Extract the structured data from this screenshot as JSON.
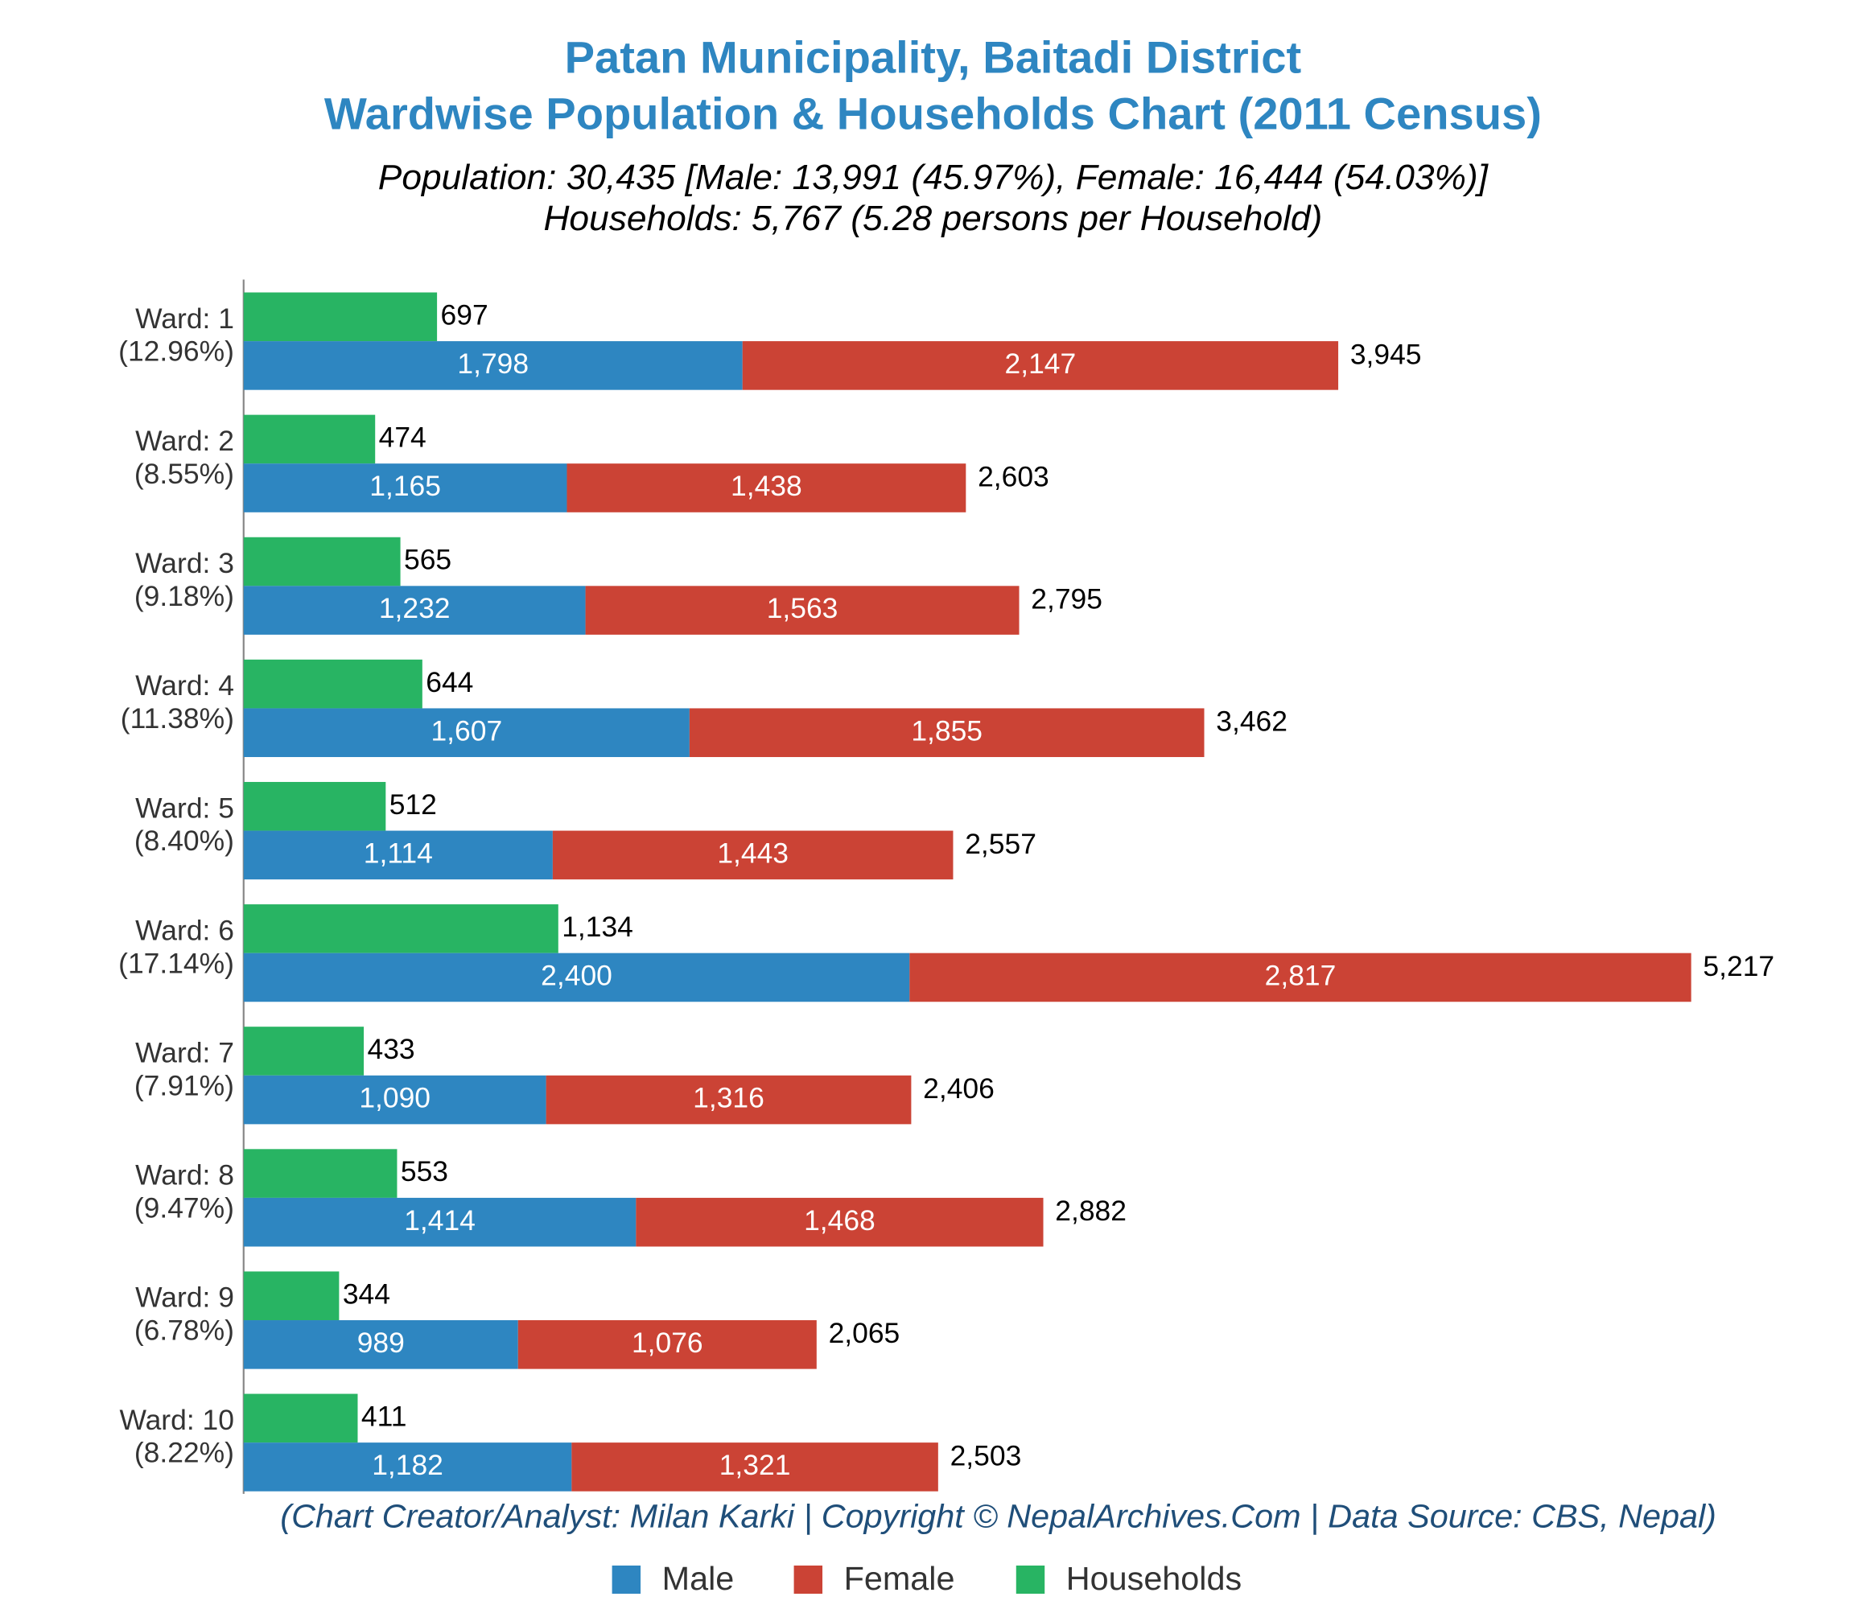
{
  "chart_data": {
    "type": "bar",
    "title": "Patan Municipality, Baitadi District",
    "subtitle": "Wardwise Population & Households Chart (2011 Census)",
    "summary_lines": [
      "Population: 30,435 [Male: 13,991 (45.97%), Female: 16,444 (54.03%)]",
      "Households: 5,767 (5.28 persons per Household)"
    ],
    "footnote": "(Chart Creator/Analyst: Milan Karki | Copyright © NepalArchives.Com | Data Source: CBS, Nepal)",
    "categories": [
      "Ward: 1",
      "Ward: 2",
      "Ward: 3",
      "Ward: 4",
      "Ward: 5",
      "Ward: 6",
      "Ward: 7",
      "Ward: 8",
      "Ward: 9",
      "Ward: 10"
    ],
    "category_shares": [
      "(12.96%)",
      "(8.55%)",
      "(9.18%)",
      "(11.38%)",
      "(8.40%)",
      "(17.14%)",
      "(7.91%)",
      "(9.47%)",
      "(6.78%)",
      "(8.22%)"
    ],
    "series": [
      {
        "name": "Male",
        "color": "#2e86c1",
        "stack": "population",
        "values": [
          1798,
          1165,
          1232,
          1607,
          1114,
          2400,
          1090,
          1414,
          989,
          1182
        ],
        "value_labels": [
          "1,798",
          "1,165",
          "1,232",
          "1,607",
          "1,114",
          "2,400",
          "1,090",
          "1,414",
          "989",
          "1,182"
        ]
      },
      {
        "name": "Female",
        "color": "#cb4335",
        "stack": "population",
        "values": [
          2147,
          1438,
          1563,
          1855,
          1443,
          2817,
          1316,
          1468,
          1076,
          1321
        ],
        "value_labels": [
          "2,147",
          "1,438",
          "1,563",
          "1,855",
          "1,443",
          "2,817",
          "1,316",
          "1,468",
          "1,076",
          "1,321"
        ]
      },
      {
        "name": "Households",
        "color": "#28b463",
        "stack": "households",
        "values": [
          697,
          474,
          565,
          644,
          512,
          1134,
          433,
          553,
          344,
          411
        ],
        "value_labels": [
          "697",
          "474",
          "565",
          "644",
          "512",
          "1,134",
          "433",
          "553",
          "344",
          "411"
        ]
      }
    ],
    "total_labels": [
      "3,945",
      "2,603",
      "2,795",
      "3,462",
      "2,557",
      "5,217",
      "2,406",
      "2,882",
      "2,065",
      "2,503"
    ],
    "legend": "bottom"
  }
}
